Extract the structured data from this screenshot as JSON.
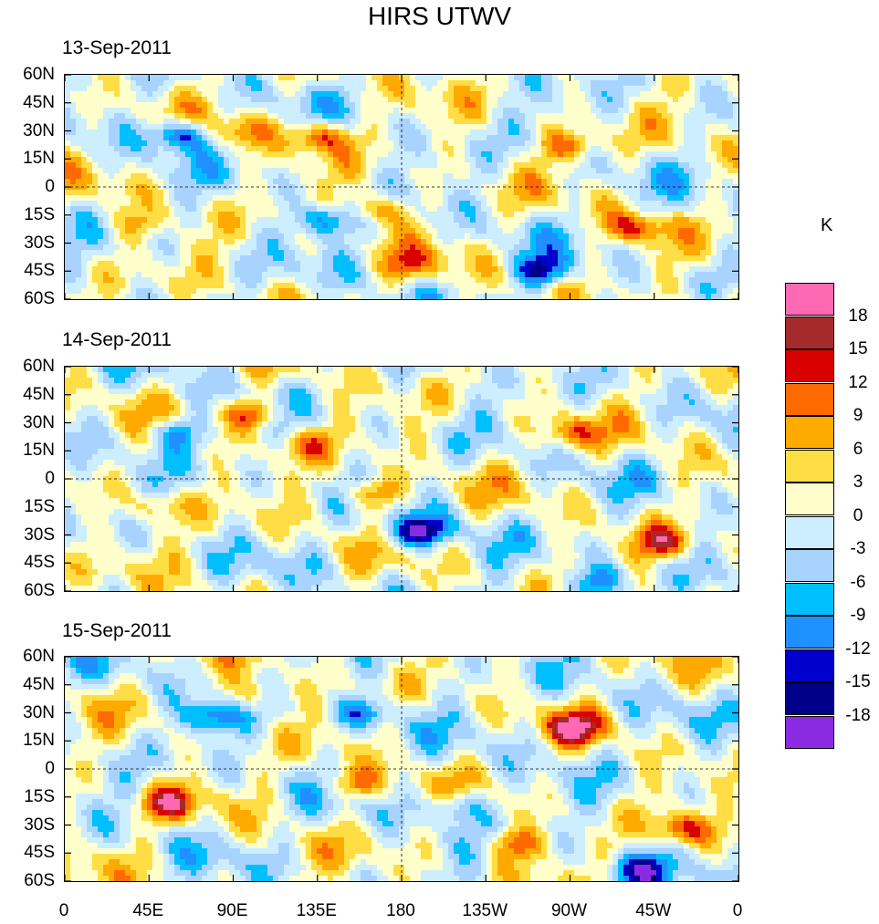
{
  "chart_data": {
    "type": "heatmap",
    "title": "HIRS UTWV",
    "colorbar_unit": "K",
    "colorbar_levels": [
      "18",
      "15",
      "12",
      "9",
      "6",
      "3",
      "0",
      "-3",
      "-6",
      "-9",
      "-12",
      "-15",
      "-18"
    ],
    "colorbar_colors": [
      "#ff69b4",
      "#a52a2a",
      "#d90000",
      "#ff6a00",
      "#ffaa00",
      "#ffdd44",
      "#ffffcc",
      "#cceeff",
      "#a9d3ff",
      "#00bfff",
      "#1e90ff",
      "#0000cd",
      "#00008b",
      "#8a2be2"
    ],
    "xlim": [
      0,
      360
    ],
    "ylim": [
      -60,
      60
    ],
    "x_ticks": [
      "0",
      "45E",
      "90E",
      "135E",
      "180",
      "135W",
      "90W",
      "45W",
      "0"
    ],
    "y_ticks": [
      "60N",
      "45N",
      "30N",
      "15N",
      "0",
      "15S",
      "30S",
      "45S",
      "60S"
    ],
    "panels": [
      {
        "date": "13-Sep-2011",
        "seed": 13,
        "features": [
          [
            62,
            28,
            -16
          ],
          [
            168,
            -12,
            12
          ],
          [
            137,
            27,
            13
          ],
          [
            140,
            -18,
            -13
          ],
          [
            255,
            -45,
            -14
          ],
          [
            270,
            22,
            11
          ],
          [
            305,
            -22,
            11
          ],
          [
            185,
            -42,
            8
          ],
          [
            95,
            30,
            7
          ],
          [
            40,
            -20,
            7
          ]
        ]
      },
      {
        "date": "14-Sep-2011",
        "seed": 14,
        "features": [
          [
            100,
            35,
            13
          ],
          [
            165,
            -8,
            13
          ],
          [
            320,
            -34,
            12
          ],
          [
            60,
            25,
            -11
          ],
          [
            195,
            -27,
            -11
          ],
          [
            288,
            -55,
            -12
          ],
          [
            270,
            24,
            10
          ],
          [
            180,
            -30,
            -9
          ],
          [
            130,
            18,
            8
          ],
          [
            50,
            -15,
            7
          ]
        ]
      },
      {
        "date": "15-Sep-2011",
        "seed": 15,
        "features": [
          [
            77,
            28,
            -12
          ],
          [
            55,
            -18,
            13
          ],
          [
            155,
            -8,
            11
          ],
          [
            273,
            22,
            14
          ],
          [
            330,
            -32,
            12
          ],
          [
            240,
            -40,
            11
          ],
          [
            305,
            -55,
            -14
          ],
          [
            160,
            30,
            -10
          ],
          [
            210,
            -20,
            -10
          ],
          [
            100,
            40,
            8
          ]
        ]
      }
    ]
  }
}
